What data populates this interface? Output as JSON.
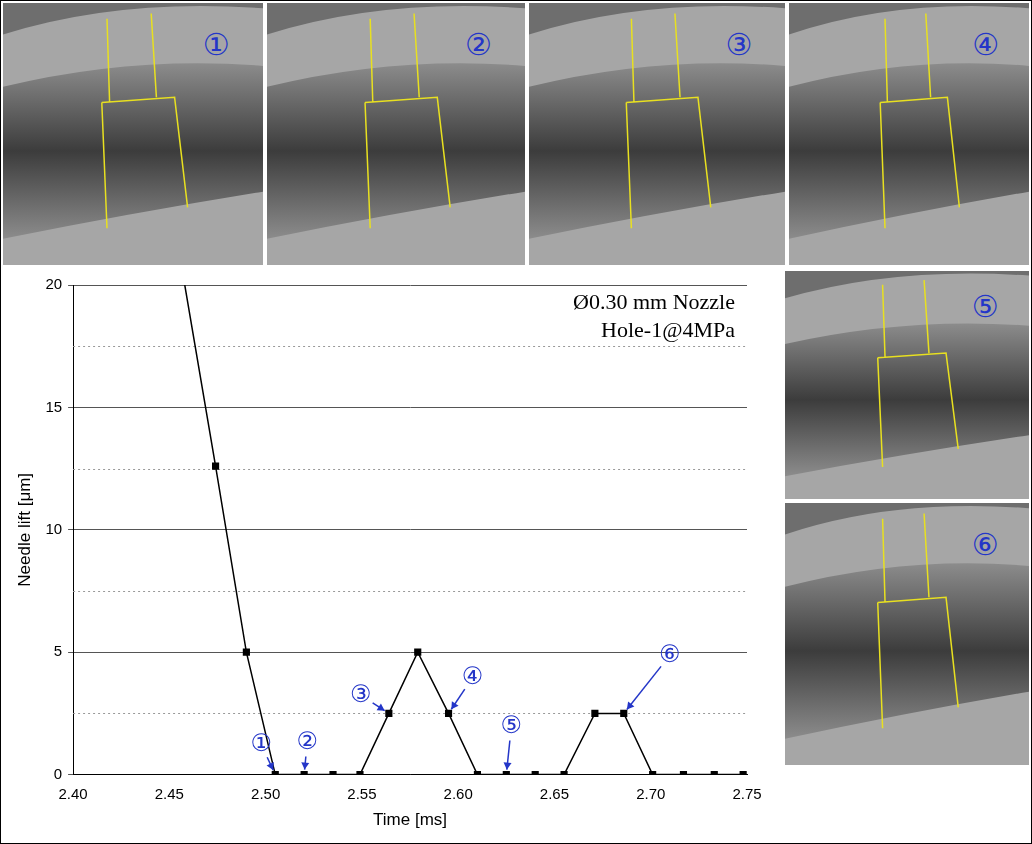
{
  "chart_data": {
    "type": "line",
    "x_label": "Time [ms]",
    "y_label": "Needle lift [μm]",
    "annotations_text": [
      "Ø0.30 mm Nozzle",
      "Hole-1@4MPa"
    ],
    "x": [
      2.458,
      2.474,
      2.49,
      2.505,
      2.52,
      2.535,
      2.549,
      2.564,
      2.579,
      2.595,
      2.61,
      2.625,
      2.64,
      2.655,
      2.671,
      2.686,
      2.701,
      2.717,
      2.733,
      2.748
    ],
    "values": [
      20,
      12.6,
      5.0,
      0,
      0,
      0,
      0,
      2.5,
      5.0,
      2.5,
      0,
      0,
      0,
      0,
      2.5,
      2.5,
      0,
      0,
      0,
      0
    ],
    "color": "#000000",
    "marker": "square",
    "line_style": "solid",
    "xlim": [
      2.4,
      2.75
    ],
    "xticks": [
      {
        "value": 2.4,
        "label": "2.40"
      },
      {
        "value": 2.45,
        "label": "2.45"
      },
      {
        "value": 2.5,
        "label": "2.50"
      },
      {
        "value": 2.55,
        "label": "2.55"
      },
      {
        "value": 2.6,
        "label": "2.60"
      },
      {
        "value": 2.65,
        "label": "2.65"
      },
      {
        "value": 2.7,
        "label": "2.70"
      },
      {
        "value": 2.75,
        "label": "2.75"
      }
    ],
    "ylim": [
      0,
      20
    ],
    "yticks": [
      0,
      5,
      10,
      15,
      20
    ],
    "minor_yticks": [
      2.5,
      7.5,
      12.5,
      17.5
    ],
    "grid": true,
    "point_annotations": [
      {
        "text": "①",
        "x": 2.505,
        "y": 0
      },
      {
        "text": "②",
        "x": 2.52,
        "y": 0
      },
      {
        "text": "③",
        "x": 2.564,
        "y": 2.5
      },
      {
        "text": "④",
        "x": 2.595,
        "y": 2.5
      },
      {
        "text": "⑤",
        "x": 2.625,
        "y": 0
      },
      {
        "text": "⑥",
        "x": 2.686,
        "y": 2.5
      }
    ],
    "photo_panels": [
      "①",
      "②",
      "③",
      "④",
      "⑤",
      "⑥"
    ]
  }
}
